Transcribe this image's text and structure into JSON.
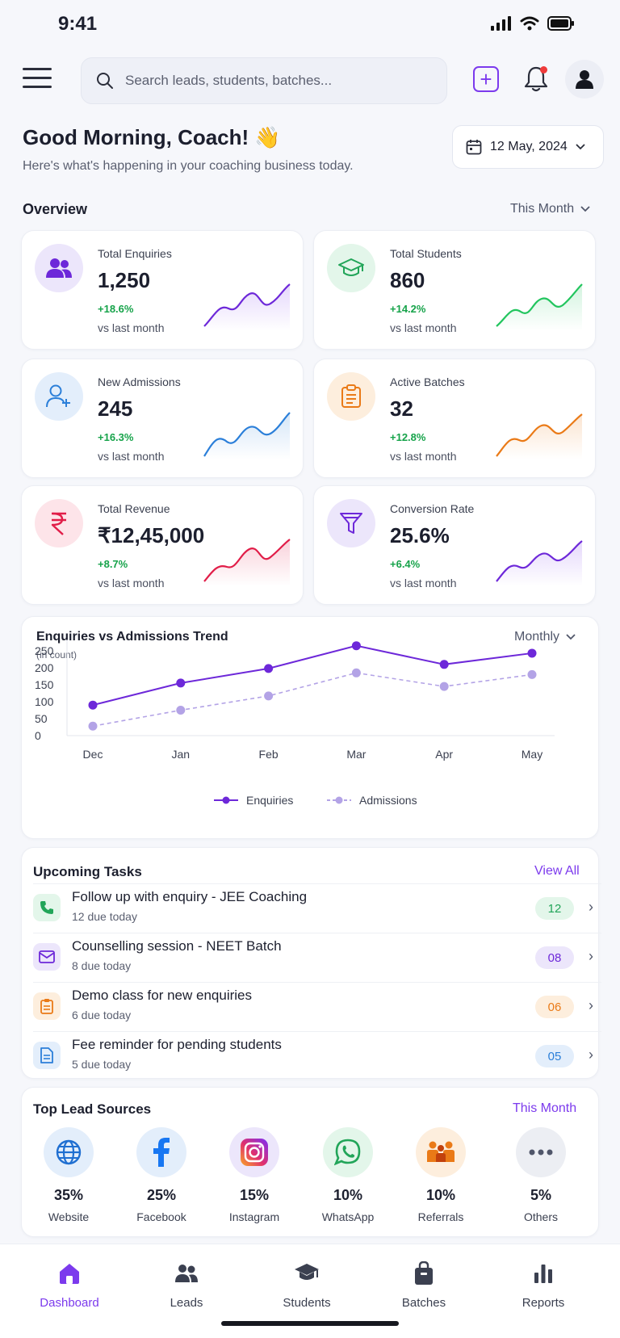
{
  "status_bar": {
    "time": "9:41"
  },
  "header": {
    "search_placeholder": "Search leads, students, batches..."
  },
  "greeting": {
    "title": "Good Morning, Coach! 👋",
    "subtitle": "Here's what's happening in your coaching business today.",
    "date": "12 May, 2024"
  },
  "overview": {
    "title": "Overview",
    "period": "This Month",
    "stats": [
      {
        "label": "Total Enquiries",
        "value": "1,250",
        "change": "+18.6%",
        "compare": "vs last month",
        "icon": "users-icon",
        "color": "#7c3aed"
      },
      {
        "label": "Total Students",
        "value": "860",
        "change": "+14.2%",
        "compare": "vs last month",
        "icon": "graduation-cap-icon",
        "color": "#22c55e"
      },
      {
        "label": "New Admissions",
        "value": "245",
        "change": "+16.3%",
        "compare": "vs last month",
        "icon": "user-plus-icon",
        "color": "#2b7fd9"
      },
      {
        "label": "Active Batches",
        "value": "32",
        "change": "+12.8%",
        "compare": "vs last month",
        "icon": "clipboard-icon",
        "color": "#ea7a17"
      },
      {
        "label": "Total Revenue",
        "value": "₹12,45,000",
        "change": "+8.7%",
        "compare": "vs last month",
        "icon": "rupee-icon",
        "color": "#e11d48"
      },
      {
        "label": "Conversion Rate",
        "value": "25.6%",
        "change": "+6.4%",
        "compare": "vs last month",
        "icon": "funnel-icon",
        "color": "#7c3aed"
      }
    ]
  },
  "trend": {
    "title": "Enquiries vs Admissions Trend",
    "subtitle": "(in count)",
    "period": "Monthly"
  },
  "chart_data": {
    "type": "line",
    "title": "Enquiries vs Admissions Trend",
    "subtitle": "(in count)",
    "x": [
      "Dec",
      "Jan",
      "Feb",
      "Mar",
      "Apr",
      "May"
    ],
    "yticks": [
      0,
      50,
      100,
      150,
      200,
      250
    ],
    "ylim": [
      0,
      250
    ],
    "series": [
      {
        "name": "Enquiries",
        "values": [
          90,
          155,
          198,
          265,
          210,
          243
        ],
        "color": "#6d28d9",
        "style": "solid"
      },
      {
        "name": "Admissions",
        "values": [
          28,
          75,
          117,
          185,
          145,
          180
        ],
        "color": "#b3a3e6",
        "style": "dashed"
      }
    ],
    "legend": "bottom",
    "grid": false
  },
  "tasks": {
    "title": "Upcoming Tasks",
    "view_all": "View All",
    "items": [
      {
        "title": "Follow up with enquiry - JEE Coaching",
        "sub": "12 due today",
        "count": "12",
        "icon": "phone-icon"
      },
      {
        "title": "Counselling session - NEET Batch",
        "sub": "8 due today",
        "count": "08",
        "icon": "mail-icon"
      },
      {
        "title": "Demo class for new enquiries",
        "sub": "6 due today",
        "count": "06",
        "icon": "clipboard-icon"
      },
      {
        "title": "Fee reminder for pending students",
        "sub": "5 due today",
        "count": "05",
        "icon": "document-icon"
      }
    ]
  },
  "lead_sources": {
    "title": "Top Lead Sources",
    "period": "This Month",
    "items": [
      {
        "pct": "35%",
        "name": "Website",
        "icon": "globe-icon"
      },
      {
        "pct": "25%",
        "name": "Facebook",
        "icon": "facebook-icon"
      },
      {
        "pct": "15%",
        "name": "Instagram",
        "icon": "instagram-icon"
      },
      {
        "pct": "10%",
        "name": "WhatsApp",
        "icon": "whatsapp-icon"
      },
      {
        "pct": "10%",
        "name": "Referrals",
        "icon": "referrals-icon"
      },
      {
        "pct": "5%",
        "name": "Others",
        "icon": "more-icon"
      }
    ]
  },
  "nav": [
    {
      "label": "Dashboard",
      "icon": "home-icon"
    },
    {
      "label": "Leads",
      "icon": "users-icon"
    },
    {
      "label": "Students",
      "icon": "graduation-cap-icon"
    },
    {
      "label": "Batches",
      "icon": "bag-icon"
    },
    {
      "label": "Reports",
      "icon": "bar-chart-icon"
    }
  ]
}
